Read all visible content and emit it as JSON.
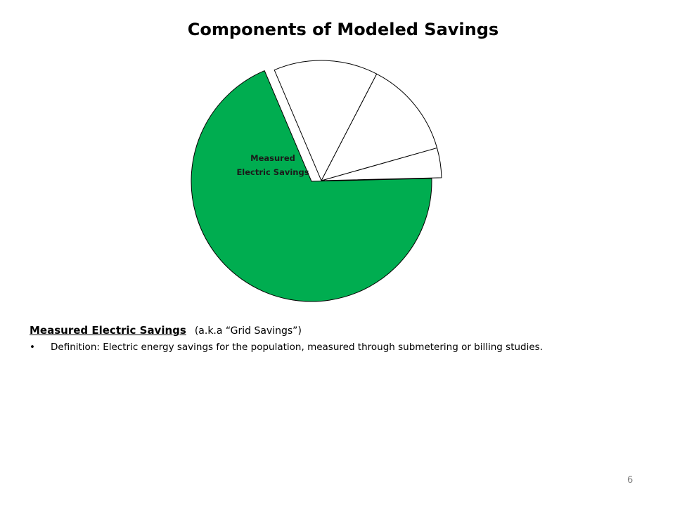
{
  "slide": {
    "title": "Components of Modeled Savings",
    "page_number": "6"
  },
  "chart_data": {
    "type": "pie",
    "title": "Components of Modeled Savings",
    "slices": [
      {
        "label": "Measured Electric Savings",
        "value": 69,
        "color": "#00ad50",
        "exploded": false,
        "label_lines": [
          "Measured",
          "Electric Savings"
        ]
      },
      {
        "label": "",
        "value": 4,
        "color": "#ffffff",
        "exploded": true
      },
      {
        "label": "",
        "value": 13,
        "color": "#ffffff",
        "exploded": true
      },
      {
        "label": "",
        "value": 14,
        "color": "#ffffff",
        "exploded": true
      }
    ],
    "start_angle_deg": -113,
    "direction": "counterclockwise"
  },
  "section": {
    "heading": "Measured Electric Savings",
    "aka": "(a.k.a “Grid Savings”)",
    "bullets": [
      "Definition: Electric energy savings for the population, measured through submetering or billing studies."
    ]
  }
}
